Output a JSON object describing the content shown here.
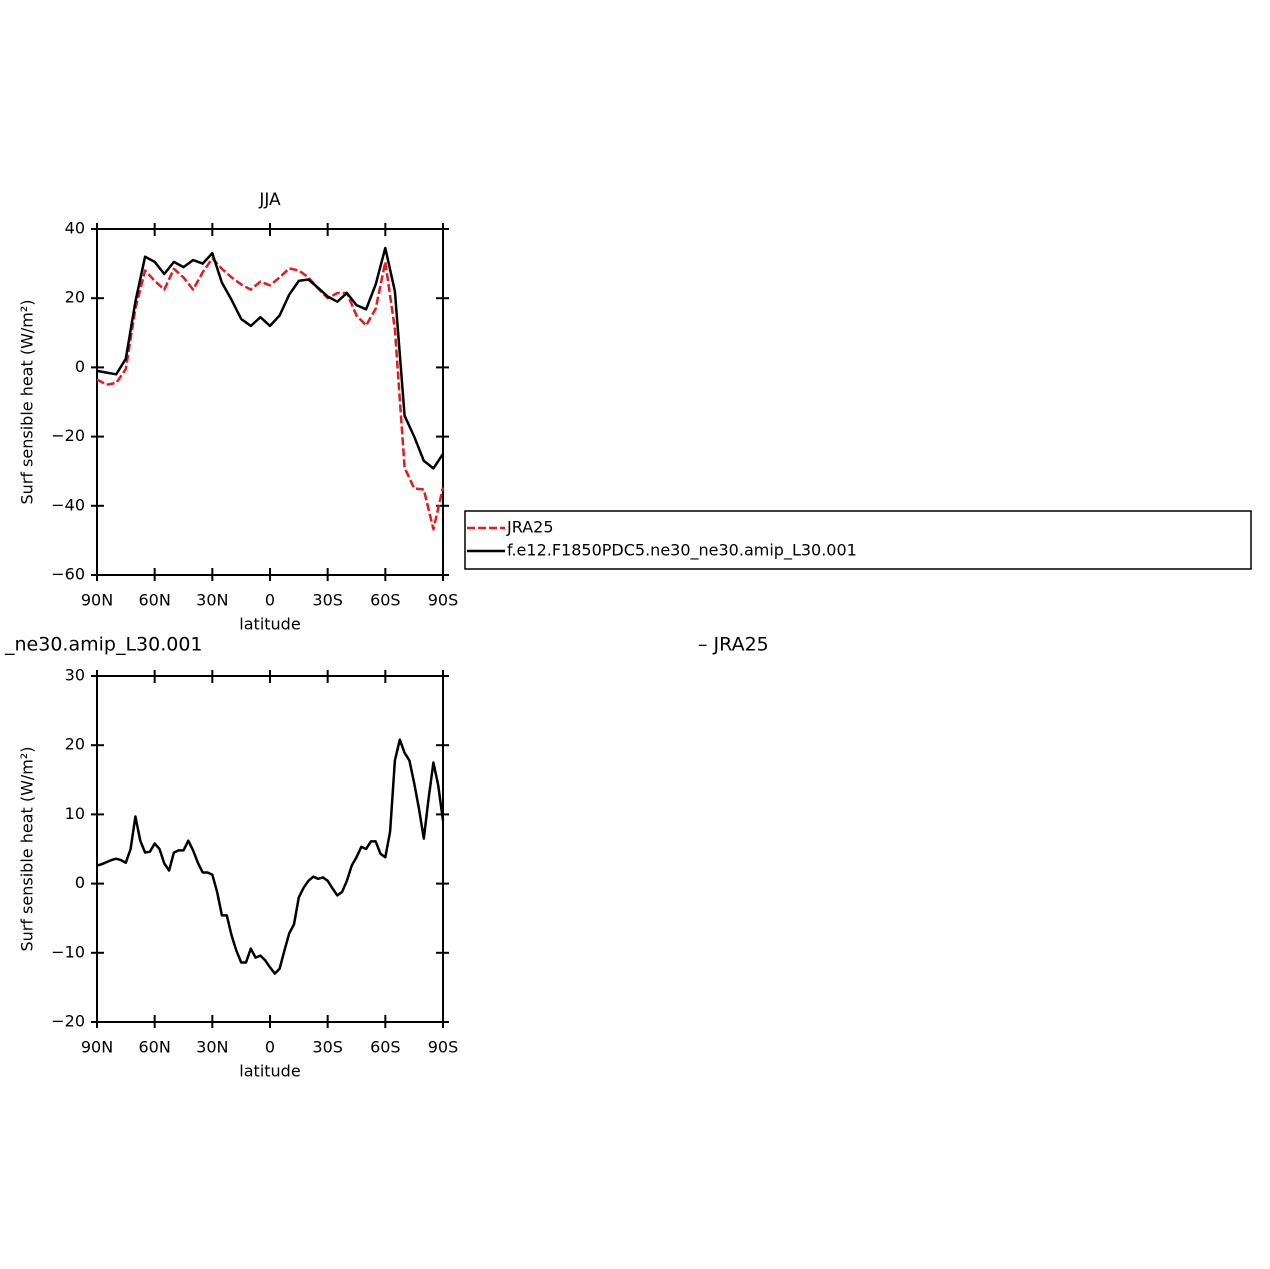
{
  "chart_data": [
    {
      "type": "line",
      "title": "JJA",
      "ylabel": "Surf sensible heat (W/m²)",
      "xlabel": "latitude",
      "x": [
        90,
        85,
        80,
        75,
        70,
        65,
        60,
        55,
        50,
        45,
        40,
        35,
        30,
        25,
        20,
        15,
        10,
        5,
        0,
        -5,
        -10,
        -15,
        -20,
        -25,
        -30,
        -35,
        -40,
        -45,
        -50,
        -55,
        -60,
        -65,
        -70,
        -75,
        -80,
        -85,
        -90
      ],
      "series": [
        {
          "name": "JRA25",
          "color": "#e41a1c",
          "dashed": true,
          "values": [
            -3.5,
            -5,
            -4.5,
            -0.5,
            17,
            28,
            25,
            22.5,
            28.5,
            26,
            22.5,
            27.5,
            31.5,
            28.5,
            26,
            24,
            22.5,
            24.8,
            23.7,
            26,
            28.6,
            28,
            26,
            22.8,
            20,
            21.5,
            21.5,
            15,
            12.1,
            17,
            30.5,
            11,
            -29,
            -35,
            -35.3,
            -46.8,
            -34.7
          ]
        },
        {
          "name": "f.e12.F1850PDC5.ne30_ne30.amip_L30.001",
          "color": "#000000",
          "dashed": false,
          "values": [
            -1,
            -1.5,
            -2,
            2.5,
            19,
            32,
            30.5,
            27,
            30.5,
            29,
            31,
            30,
            33,
            24.5,
            19.5,
            14,
            12,
            14.5,
            12,
            15,
            21,
            25,
            25.4,
            23,
            20.5,
            19,
            21.5,
            18,
            16.8,
            24,
            34.5,
            22,
            -14,
            -20,
            -27,
            -29.2,
            -25
          ]
        }
      ],
      "xlim": [
        90,
        -90
      ],
      "xticks": [
        {
          "value": 90,
          "label": "90N"
        },
        {
          "value": 60,
          "label": "60N"
        },
        {
          "value": 30,
          "label": "30N"
        },
        0,
        {
          "value": -30,
          "label": "30S"
        },
        {
          "value": -60,
          "label": "60S"
        },
        {
          "value": -90,
          "label": "90S"
        }
      ],
      "ylim": [
        -60,
        40
      ],
      "yticks": [
        {
          "value": -60,
          "label": "−60"
        },
        {
          "value": -40,
          "label": "−40"
        },
        {
          "value": -20,
          "label": "−20"
        },
        0,
        20,
        40
      ],
      "legend": "right"
    },
    {
      "type": "line",
      "title": [
        "_ne30.amip_L30.001",
        "– JRA25"
      ],
      "ylabel": "Surf sensible heat (W/m²)",
      "xlabel": "latitude",
      "x": [
        90,
        87.5,
        85,
        82.5,
        80,
        77.5,
        75,
        72.5,
        70,
        67.5,
        65,
        62.5,
        60,
        57.5,
        55,
        52.5,
        50,
        47.5,
        45,
        42.5,
        40,
        37.5,
        35,
        32.5,
        30,
        27.5,
        25,
        22.5,
        20,
        17.5,
        15,
        12.5,
        10,
        7.5,
        5,
        2.5,
        0,
        -2.5,
        -5,
        -7.5,
        -10,
        -12.5,
        -15,
        -17.5,
        -20,
        -22.5,
        -25,
        -27.5,
        -30,
        -32.5,
        -35,
        -37.5,
        -40,
        -42.5,
        -45,
        -47.5,
        -50,
        -52.5,
        -55,
        -57.5,
        -60,
        -62.5,
        -65,
        -67.5,
        -70,
        -72.5,
        -75,
        -77.5,
        -80,
        -82.5,
        -85,
        -87.5,
        -90
      ],
      "values": [
        2.6,
        2.8,
        3.1,
        3.4,
        3.6,
        3.4,
        3.0,
        5,
        9.7,
        6.2,
        4.5,
        4.6,
        5.8,
        5,
        2.9,
        1.9,
        4.5,
        4.8,
        4.8,
        6.2,
        4.8,
        3,
        1.6,
        1.6,
        1.3,
        -1.2,
        -4.6,
        -4.6,
        -7.5,
        -9.7,
        -11.4,
        -11.4,
        -9.4,
        -10.7,
        -10.4,
        -11.1,
        -12.1,
        -13,
        -12.3,
        -9.7,
        -7.2,
        -5.9,
        -2,
        -0.6,
        0.4,
        1,
        0.7,
        0.9,
        0.4,
        -0.7,
        -1.7,
        -1.2,
        0.4,
        2.6,
        3.8,
        5.3,
        5,
        6.1,
        6.1,
        4.3,
        3.8,
        7.5,
        17.8,
        20.8,
        18.9,
        17.8,
        14.5,
        10.8,
        6.5,
        12.3,
        17.5,
        14.2,
        9.1
      ],
      "color": "#000000",
      "xlim": [
        90,
        -90
      ],
      "xticks": [
        {
          "value": 90,
          "label": "90N"
        },
        {
          "value": 60,
          "label": "60N"
        },
        {
          "value": 30,
          "label": "30N"
        },
        0,
        {
          "value": -30,
          "label": "30S"
        },
        {
          "value": -60,
          "label": "60S"
        },
        {
          "value": -90,
          "label": "90S"
        }
      ],
      "ylim": [
        -20,
        30
      ],
      "yticks": [
        {
          "value": -20,
          "label": "−20"
        },
        {
          "value": -10,
          "label": "−10"
        },
        0,
        10,
        20,
        30
      ]
    }
  ]
}
